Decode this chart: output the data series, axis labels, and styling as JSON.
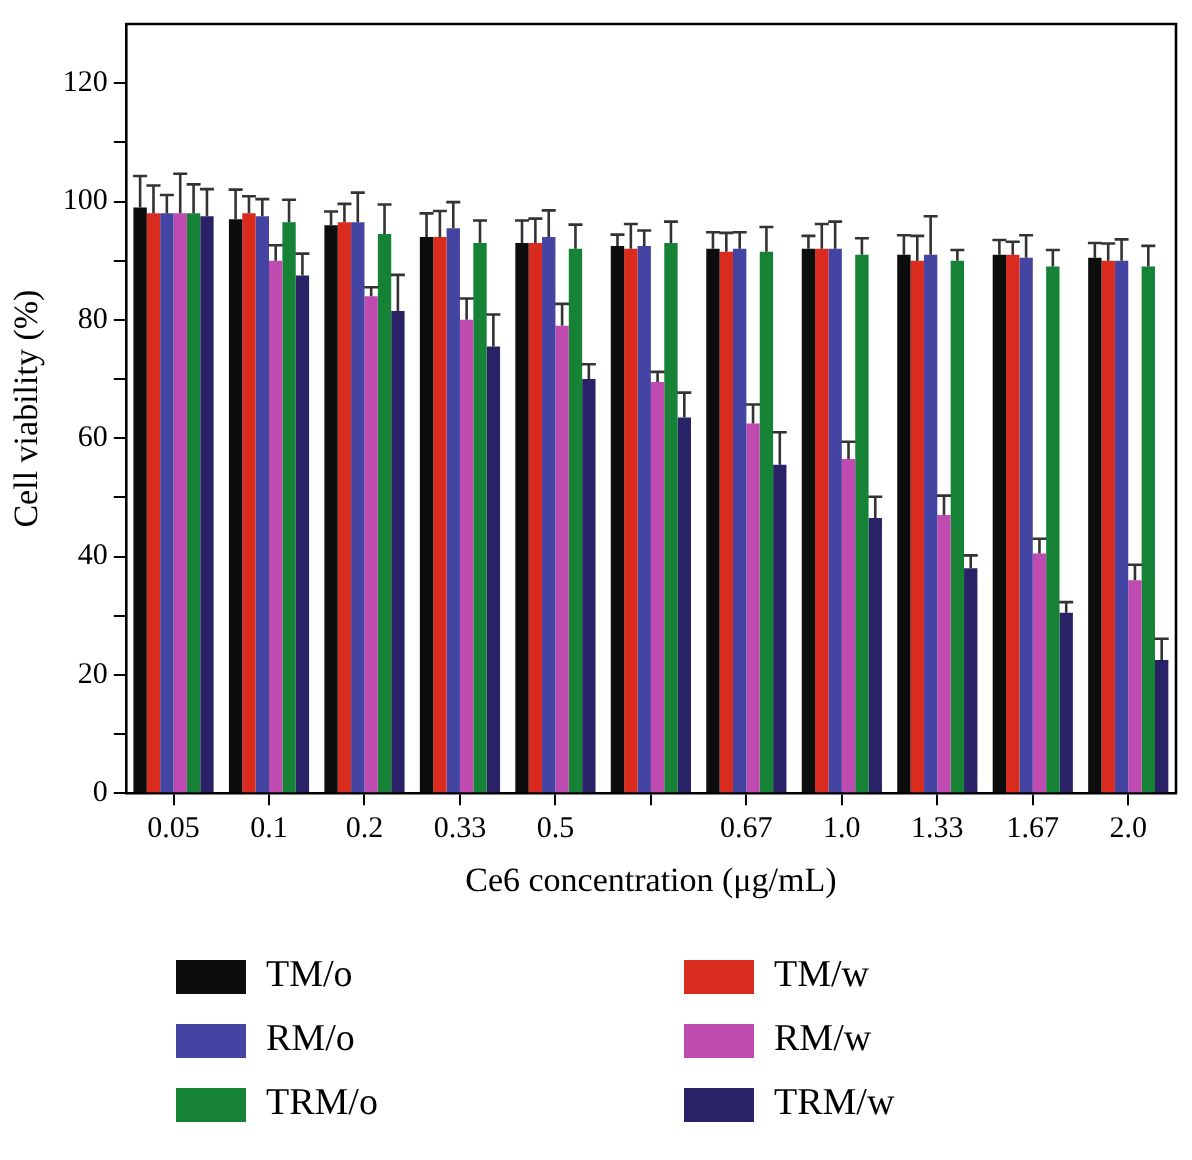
{
  "chart_data": {
    "type": "bar",
    "xlabel": "Ce6 concentration (μg/mL)",
    "ylabel": "Cell viability (%)",
    "categories": [
      "0.05",
      "0.1",
      "0.2",
      "0.33",
      "0.5",
      null,
      "0.67",
      "1.0",
      "1.33",
      "1.67",
      "2.0"
    ],
    "series": [
      {
        "name": "TM/o",
        "color": "#0d0d0d",
        "values": [
          99,
          97,
          96,
          94,
          93,
          92.5,
          92,
          92,
          91,
          91,
          90.5
        ],
        "errors": [
          [
            99,
            104.3
          ],
          [
            97,
            102
          ],
          [
            96,
            98.3
          ],
          [
            94,
            98
          ],
          [
            93,
            96.8
          ],
          [
            92.5,
            94.4
          ],
          [
            92,
            94.8
          ],
          [
            92,
            94.2
          ],
          [
            91,
            94.3
          ],
          [
            91,
            93.5
          ],
          [
            90.5,
            93
          ]
        ]
      },
      {
        "name": "TM/w",
        "color": "#d92b1e",
        "values": [
          98,
          98,
          96.5,
          94,
          93,
          92,
          91.5,
          92,
          90,
          91,
          90
        ],
        "errors": [
          [
            98,
            102.7
          ],
          [
            98,
            100.9
          ],
          [
            96.5,
            99.6
          ],
          [
            94,
            98.4
          ],
          [
            93,
            97.1
          ],
          [
            92,
            96.2
          ],
          [
            91.5,
            94.7
          ],
          [
            92,
            96.2
          ],
          [
            90,
            94.2
          ],
          [
            91,
            93.2
          ],
          [
            90,
            92.9
          ]
        ]
      },
      {
        "name": "RM/o",
        "color": "#4444a3",
        "values": [
          98,
          97.5,
          96.5,
          95.5,
          94,
          92.5,
          92,
          92,
          91,
          90.5,
          90
        ],
        "errors": [
          [
            98,
            101.1
          ],
          [
            97.5,
            100.4
          ],
          [
            96.5,
            101.5
          ],
          [
            95.5,
            99.9
          ],
          [
            94,
            98.5
          ],
          [
            92.5,
            95.1
          ],
          [
            92,
            94.8
          ],
          [
            92,
            96.6
          ],
          [
            91,
            97.5
          ],
          [
            90.5,
            94.3
          ],
          [
            90,
            93.6
          ]
        ]
      },
      {
        "name": "RM/w",
        "color": "#c04bb0",
        "values": [
          98,
          90,
          84,
          80,
          79,
          69.5,
          62.5,
          56.5,
          47,
          40.5,
          36
        ],
        "errors": [
          [
            98,
            104.7
          ],
          [
            90,
            92.6
          ],
          [
            84,
            85.5
          ],
          [
            80,
            83.6
          ],
          [
            79,
            82.7
          ],
          [
            69.5,
            71.2
          ],
          [
            62.5,
            65.7
          ],
          [
            56.5,
            59.4
          ],
          [
            47,
            50.3
          ],
          [
            40.5,
            43
          ],
          [
            36,
            38.6
          ]
        ]
      },
      {
        "name": "TRM/o",
        "color": "#168236",
        "values": [
          98,
          96.5,
          94.5,
          93,
          92,
          93,
          91.5,
          91,
          90,
          89,
          89
        ],
        "errors": [
          [
            98,
            102.9
          ],
          [
            96.5,
            100.3
          ],
          [
            94.5,
            99.5
          ],
          [
            93,
            96.8
          ],
          [
            92,
            96.1
          ],
          [
            93,
            96.6
          ],
          [
            91.5,
            95.7
          ],
          [
            91,
            93.8
          ],
          [
            90,
            91.8
          ],
          [
            89,
            91.8
          ],
          [
            89,
            92.5
          ]
        ]
      },
      {
        "name": "TRM/w",
        "color": "#2a2266",
        "values": [
          97.5,
          87.5,
          81.5,
          75.5,
          70,
          63.5,
          55.5,
          46.5,
          38,
          30.5,
          22.5
        ],
        "errors": [
          [
            97.5,
            102.1
          ],
          [
            87.5,
            91.2
          ],
          [
            81.5,
            87.6
          ],
          [
            75.5,
            80.9
          ],
          [
            70,
            72.5
          ],
          [
            63.5,
            67.7
          ],
          [
            55.5,
            61
          ],
          [
            46.5,
            50.1
          ],
          [
            38,
            40.2
          ],
          [
            30.5,
            32.3
          ],
          [
            22.5,
            26.1
          ]
        ]
      }
    ],
    "ylim": [
      0,
      130
    ],
    "yticks": [
      0,
      {
        "value": 10,
        "label": null
      },
      20,
      {
        "value": 30,
        "label": null
      },
      40,
      {
        "value": 50,
        "label": null
      },
      60,
      {
        "value": 70,
        "label": null
      },
      80,
      {
        "value": 90,
        "label": null
      },
      100,
      {
        "value": 110,
        "label": null
      },
      120
    ],
    "grid": false,
    "legend": "bottom"
  }
}
